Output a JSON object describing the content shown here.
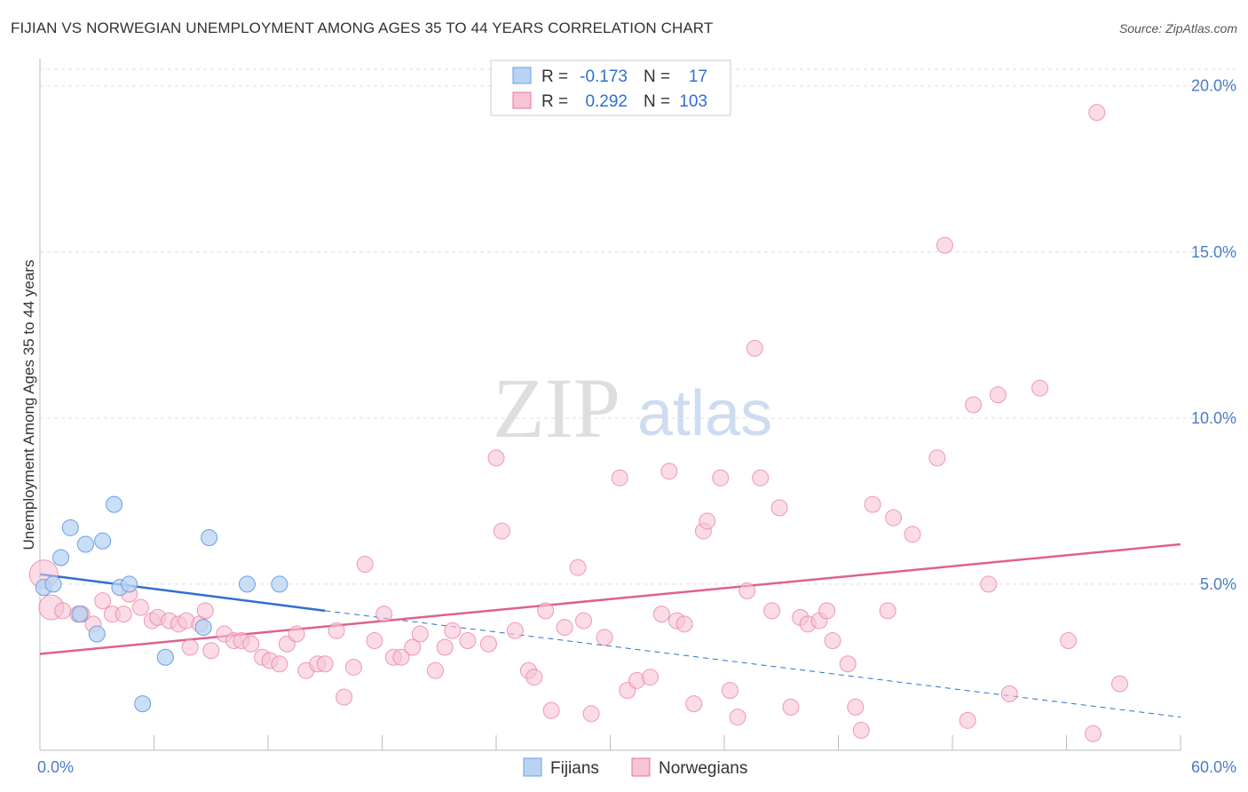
{
  "title": "FIJIAN VS NORWEGIAN UNEMPLOYMENT AMONG AGES 35 TO 44 YEARS CORRELATION CHART",
  "source": "Source: ZipAtlas.com",
  "watermark": {
    "zip": "ZIP",
    "atlas": "atlas"
  },
  "colors": {
    "fijians": "#6a9fe0",
    "fijians_fill": "#b8d3f4",
    "norwegians": "#e8749b",
    "norwegians_fill": "#f7c3d6",
    "trend_fijians": "#2f6fd0",
    "trend_norwegians": "#e0608e"
  },
  "legend": {
    "r_label": "R =",
    "n_label": "N =",
    "rows": [
      {
        "series": "Fijians",
        "r": "-0.173",
        "n": "17"
      },
      {
        "series": "Norwegians",
        "r": "0.292",
        "n": "103"
      }
    ]
  },
  "bottom_legend": [
    "Fijians",
    "Norwegians"
  ],
  "chart_data": {
    "type": "scatter",
    "title": "FIJIAN VS NORWEGIAN UNEMPLOYMENT AMONG AGES 35 TO 44 YEARS CORRELATION CHART",
    "xlabel": "",
    "ylabel": "Unemployment Among Ages 35 to 44 years",
    "xlim": [
      0,
      60
    ],
    "ylim": [
      0,
      20.5
    ],
    "x_tick_labels": [
      "0.0%",
      "60.0%"
    ],
    "y_ticks": [
      5,
      10,
      15,
      20
    ],
    "y_tick_labels": [
      "5.0%",
      "10.0%",
      "15.0%",
      "20.0%"
    ],
    "series": [
      {
        "name": "Fijians",
        "points": [
          [
            0.2,
            4.9
          ],
          [
            0.7,
            5.0
          ],
          [
            1.1,
            5.8
          ],
          [
            1.6,
            6.7
          ],
          [
            2.1,
            4.1
          ],
          [
            2.4,
            6.2
          ],
          [
            3.0,
            3.5
          ],
          [
            3.3,
            6.3
          ],
          [
            3.9,
            7.4
          ],
          [
            4.2,
            4.9
          ],
          [
            4.7,
            5.0
          ],
          [
            5.4,
            1.4
          ],
          [
            6.6,
            2.8
          ],
          [
            8.6,
            3.7
          ],
          [
            8.9,
            6.4
          ],
          [
            10.9,
            5.0
          ],
          [
            12.6,
            5.0
          ]
        ],
        "trend": {
          "x": [
            0,
            15
          ],
          "y": [
            5.3,
            4.2
          ],
          "dashed_to": [
            60,
            1.0
          ]
        }
      },
      {
        "name": "Norwegians",
        "points": [
          [
            0.2,
            5.3
          ],
          [
            0.6,
            4.3
          ],
          [
            1.2,
            4.2
          ],
          [
            2.0,
            4.1
          ],
          [
            2.2,
            4.1
          ],
          [
            2.8,
            3.8
          ],
          [
            3.3,
            4.5
          ],
          [
            3.8,
            4.1
          ],
          [
            4.4,
            4.1
          ],
          [
            4.7,
            4.7
          ],
          [
            5.3,
            4.3
          ],
          [
            5.9,
            3.9
          ],
          [
            6.2,
            4.0
          ],
          [
            6.8,
            3.9
          ],
          [
            7.3,
            3.8
          ],
          [
            7.7,
            3.9
          ],
          [
            7.9,
            3.1
          ],
          [
            8.4,
            3.8
          ],
          [
            8.7,
            4.2
          ],
          [
            9.0,
            3.0
          ],
          [
            9.7,
            3.5
          ],
          [
            10.2,
            3.3
          ],
          [
            10.6,
            3.3
          ],
          [
            11.1,
            3.2
          ],
          [
            11.7,
            2.8
          ],
          [
            12.1,
            2.7
          ],
          [
            12.6,
            2.6
          ],
          [
            13.0,
            3.2
          ],
          [
            13.5,
            3.5
          ],
          [
            14.0,
            2.4
          ],
          [
            14.6,
            2.6
          ],
          [
            15.0,
            2.6
          ],
          [
            15.6,
            3.6
          ],
          [
            16.0,
            1.6
          ],
          [
            16.5,
            2.5
          ],
          [
            17.1,
            5.6
          ],
          [
            17.6,
            3.3
          ],
          [
            18.1,
            4.1
          ],
          [
            18.6,
            2.8
          ],
          [
            19.0,
            2.8
          ],
          [
            19.6,
            3.1
          ],
          [
            20.0,
            3.5
          ],
          [
            20.8,
            2.4
          ],
          [
            21.3,
            3.1
          ],
          [
            21.7,
            3.6
          ],
          [
            22.5,
            3.3
          ],
          [
            23.6,
            3.2
          ],
          [
            24.0,
            8.8
          ],
          [
            24.3,
            6.6
          ],
          [
            25.0,
            3.6
          ],
          [
            25.7,
            2.4
          ],
          [
            26.0,
            2.2
          ],
          [
            26.6,
            4.2
          ],
          [
            26.9,
            1.2
          ],
          [
            27.6,
            3.7
          ],
          [
            28.3,
            5.5
          ],
          [
            28.6,
            3.9
          ],
          [
            29.0,
            1.1
          ],
          [
            29.7,
            3.4
          ],
          [
            30.5,
            8.2
          ],
          [
            30.9,
            1.8
          ],
          [
            31.4,
            2.1
          ],
          [
            32.1,
            2.2
          ],
          [
            32.7,
            4.1
          ],
          [
            33.1,
            8.4
          ],
          [
            33.5,
            3.9
          ],
          [
            33.9,
            3.8
          ],
          [
            34.4,
            1.4
          ],
          [
            34.9,
            6.6
          ],
          [
            35.1,
            6.9
          ],
          [
            35.8,
            8.2
          ],
          [
            36.3,
            1.8
          ],
          [
            36.7,
            1.0
          ],
          [
            37.2,
            4.8
          ],
          [
            37.6,
            12.1
          ],
          [
            37.9,
            8.2
          ],
          [
            38.5,
            4.2
          ],
          [
            38.9,
            7.3
          ],
          [
            39.5,
            1.3
          ],
          [
            40.0,
            4.0
          ],
          [
            40.4,
            3.8
          ],
          [
            41.0,
            3.9
          ],
          [
            41.4,
            4.2
          ],
          [
            41.7,
            3.3
          ],
          [
            42.5,
            2.6
          ],
          [
            42.9,
            1.3
          ],
          [
            43.2,
            0.6
          ],
          [
            43.8,
            7.4
          ],
          [
            44.6,
            4.2
          ],
          [
            44.9,
            7.0
          ],
          [
            45.9,
            6.5
          ],
          [
            47.2,
            8.8
          ],
          [
            47.6,
            15.2
          ],
          [
            48.8,
            0.9
          ],
          [
            49.1,
            10.4
          ],
          [
            49.9,
            5.0
          ],
          [
            50.4,
            10.7
          ],
          [
            51.0,
            1.7
          ],
          [
            52.6,
            10.9
          ],
          [
            54.1,
            3.3
          ],
          [
            55.4,
            0.5
          ],
          [
            55.6,
            19.2
          ],
          [
            56.8,
            2.0
          ]
        ],
        "trend": {
          "x": [
            0,
            60
          ],
          "y": [
            2.9,
            6.2
          ]
        }
      }
    ],
    "legend_position": "top-center"
  }
}
